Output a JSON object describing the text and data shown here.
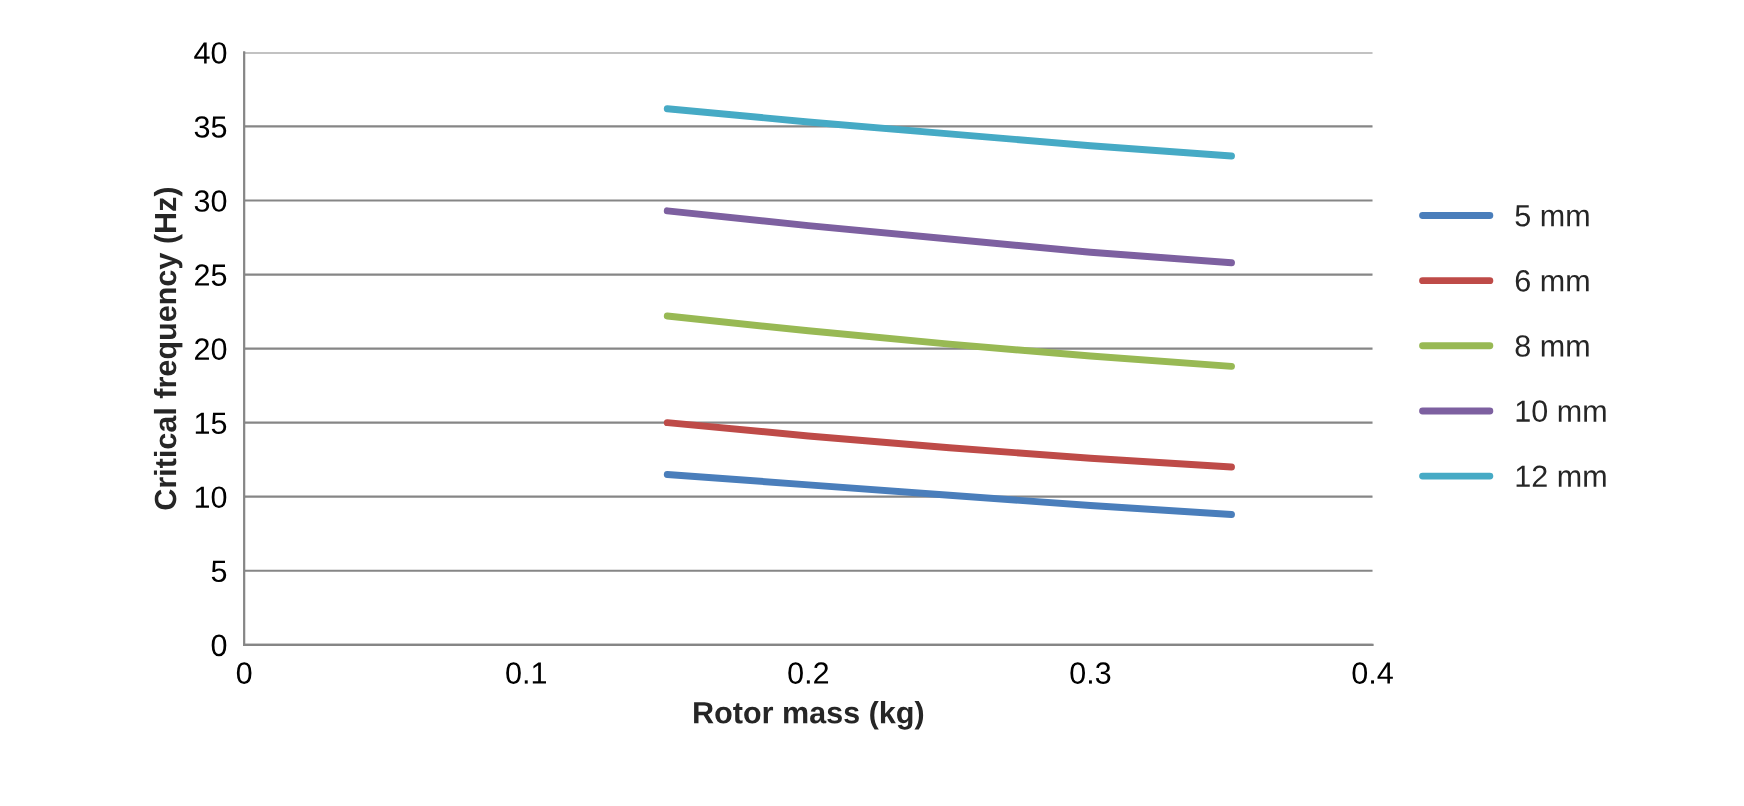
{
  "chart_data": {
    "type": "line",
    "xlabel": "Rotor mass (kg)",
    "ylabel": "Critical frequency (Hz)",
    "x": [
      0.15,
      0.2,
      0.25,
      0.3,
      0.35
    ],
    "series": [
      {
        "name": "5 mm",
        "color": "#4a7ebb",
        "values": [
          11.5,
          10.8,
          10.1,
          9.4,
          8.8
        ]
      },
      {
        "name": "6 mm",
        "color": "#be4b48",
        "values": [
          15.0,
          14.1,
          13.3,
          12.6,
          12.0
        ]
      },
      {
        "name": "8 mm",
        "color": "#98b954",
        "values": [
          22.2,
          21.2,
          20.3,
          19.5,
          18.8
        ]
      },
      {
        "name": "10 mm",
        "color": "#7d60a0",
        "values": [
          29.3,
          28.3,
          27.4,
          26.5,
          25.8
        ]
      },
      {
        "name": "12 mm",
        "color": "#46aac5",
        "values": [
          36.2,
          35.3,
          34.5,
          33.7,
          33.0
        ]
      }
    ],
    "xlim": [
      0,
      0.4
    ],
    "xticks": [
      0,
      0.1,
      0.2,
      0.3,
      0.4
    ],
    "ylim": [
      0,
      40
    ],
    "yticks": [
      0,
      5,
      10,
      15,
      20,
      25,
      30,
      35,
      40
    ],
    "grid": "y",
    "legend": "right",
    "marker": "none",
    "line_style": "solid"
  }
}
